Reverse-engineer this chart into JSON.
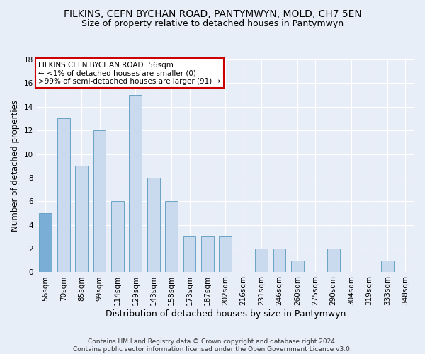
{
  "title": "FILKINS, CEFN BYCHAN ROAD, PANTYMWYN, MOLD, CH7 5EN",
  "subtitle": "Size of property relative to detached houses in Pantymwyn",
  "xlabel": "Distribution of detached houses by size in Pantymwyn",
  "ylabel": "Number of detached properties",
  "categories": [
    "56sqm",
    "70sqm",
    "85sqm",
    "99sqm",
    "114sqm",
    "129sqm",
    "143sqm",
    "158sqm",
    "173sqm",
    "187sqm",
    "202sqm",
    "216sqm",
    "231sqm",
    "246sqm",
    "260sqm",
    "275sqm",
    "290sqm",
    "304sqm",
    "319sqm",
    "333sqm",
    "348sqm"
  ],
  "values": [
    5,
    13,
    9,
    12,
    6,
    15,
    8,
    6,
    3,
    3,
    3,
    0,
    2,
    2,
    1,
    0,
    2,
    0,
    0,
    1,
    0
  ],
  "highlight_index": 0,
  "bar_color_normal": "#c9d9ee",
  "bar_color_highlight": "#7aaed6",
  "bar_edge_color": "#5a9abf",
  "annotation_text": "FILKINS CEFN BYCHAN ROAD: 56sqm\n← <1% of detached houses are smaller (0)\n>99% of semi-detached houses are larger (91) →",
  "annotation_box_color": "#ffffff",
  "annotation_box_edge": "#cc0000",
  "ylim": [
    0,
    18
  ],
  "yticks": [
    0,
    2,
    4,
    6,
    8,
    10,
    12,
    14,
    16,
    18
  ],
  "background_color": "#e8eef8",
  "grid_color": "#ffffff",
  "footer": "Contains HM Land Registry data © Crown copyright and database right 2024.\nContains public sector information licensed under the Open Government Licence v3.0.",
  "title_fontsize": 10,
  "subtitle_fontsize": 9,
  "ylabel_fontsize": 8.5,
  "xlabel_fontsize": 9,
  "tick_fontsize": 7.5,
  "annotation_fontsize": 7.5,
  "footer_fontsize": 6.5
}
